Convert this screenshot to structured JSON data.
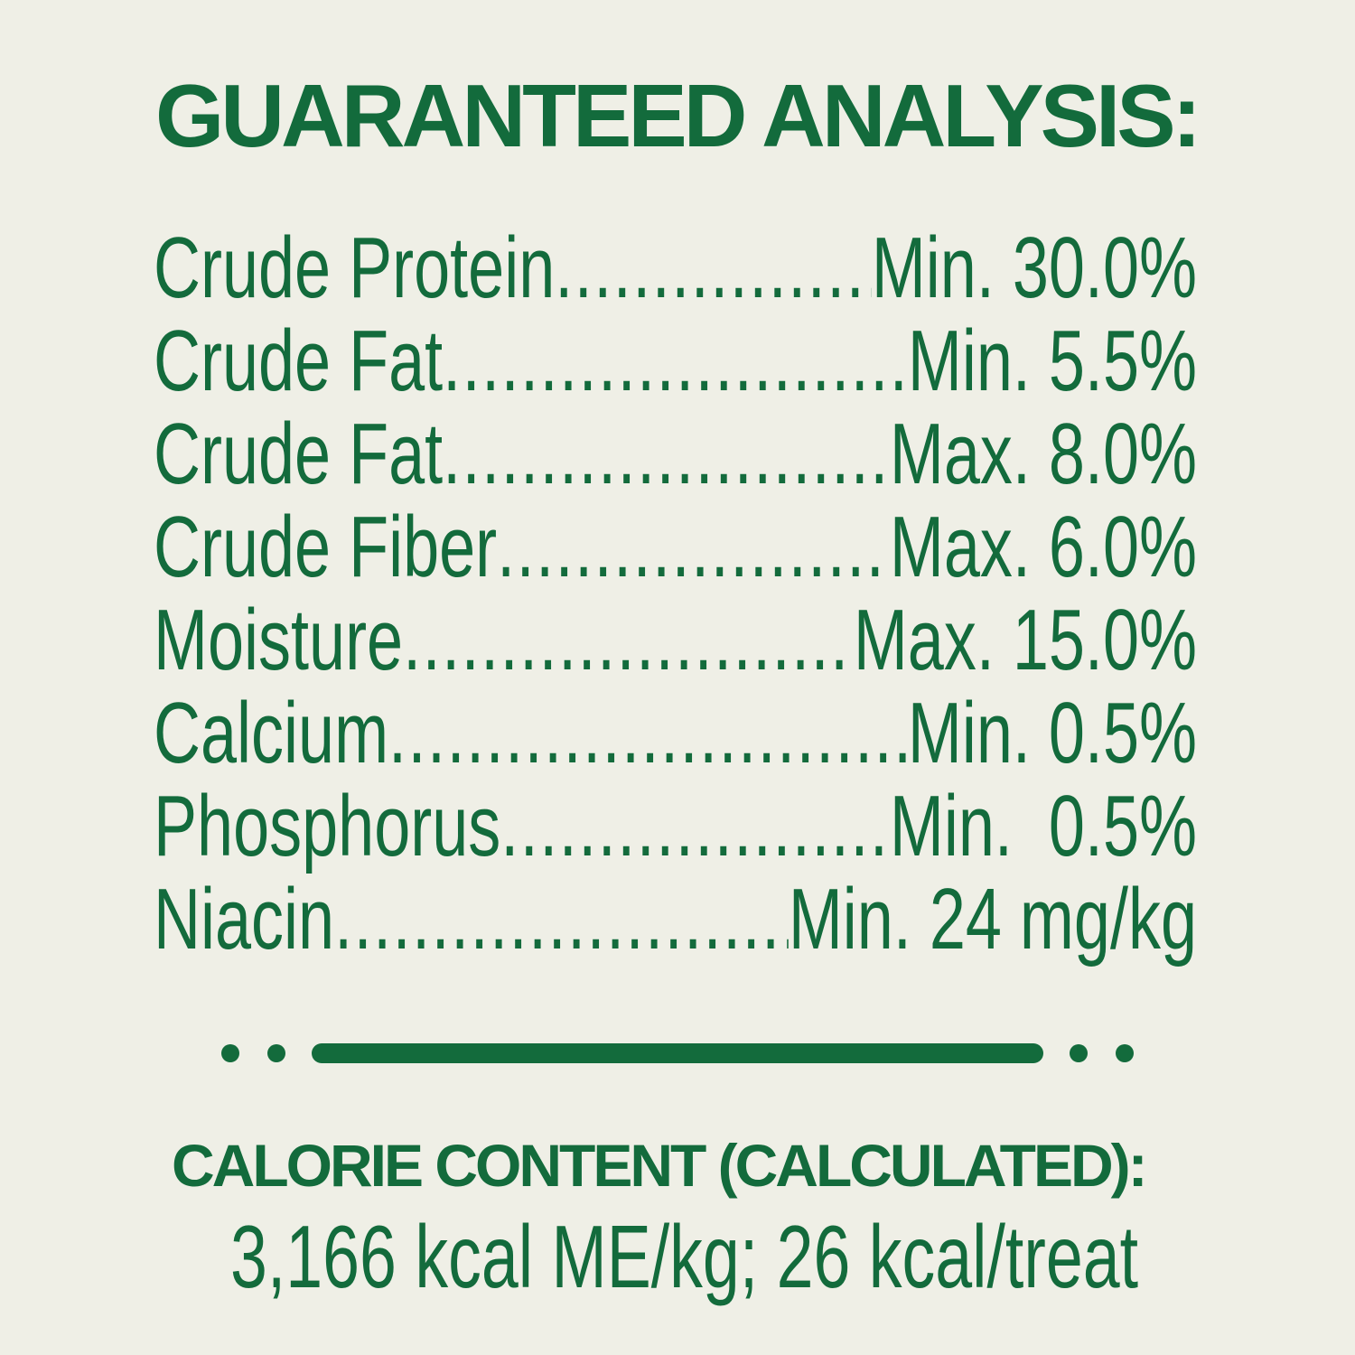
{
  "title": "GUARANTEED ANALYSIS:",
  "analysis": [
    {
      "name": "Crude Protein",
      "value": "Min. 30.0%"
    },
    {
      "name": "Crude Fat",
      "value": "Min. 5.5%"
    },
    {
      "name": "Crude Fat",
      "value": "Max. 8.0%"
    },
    {
      "name": "Crude Fiber",
      "value": "Max. 6.0%"
    },
    {
      "name": "Moisture",
      "value": "Max. 15.0%"
    },
    {
      "name": "Calcium",
      "value": "Min. 0.5%"
    },
    {
      "name": "Phosphorus",
      "value": "Min.  0.5%"
    },
    {
      "name": "Niacin",
      "value": "Min. 24 mg/kg"
    }
  ],
  "calorie": {
    "title": "CALORIE CONTENT (CALCULATED):",
    "value": "3,166 kcal ME/kg; 26 kcal/treat"
  },
  "colors": {
    "text": "#136b3c",
    "background": "#efefe6"
  }
}
